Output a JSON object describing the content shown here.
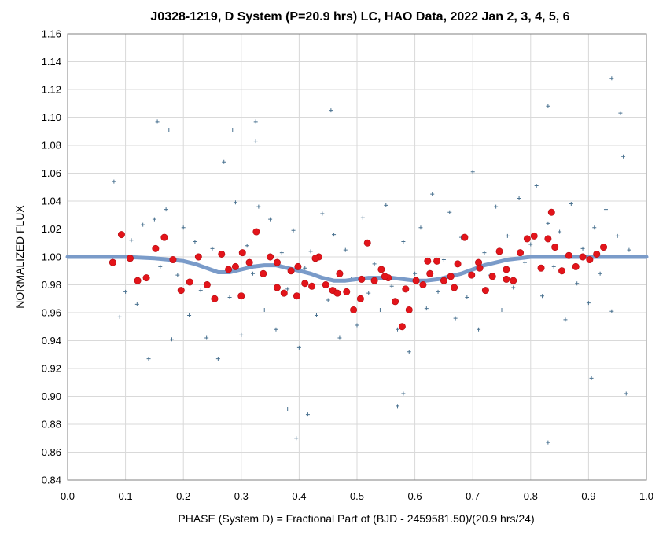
{
  "chart_data": {
    "type": "scatter",
    "title": "J0328-1219, D System (P=20.9 hrs) LC, HAO Data, 2022 Jan 2, 3, 4, 5, 6",
    "xlabel": "PHASE (System D) = Fractional Part of (BJD - 2459581.50)/(20.9 hrs/24)",
    "ylabel": "NORMALIZED FLUX",
    "xlim": [
      0.0,
      1.0
    ],
    "ylim": [
      0.84,
      1.16
    ],
    "xticks": [
      "0.0",
      "0.1",
      "0.2",
      "0.3",
      "0.4",
      "0.5",
      "0.6",
      "0.7",
      "0.8",
      "0.9",
      "1.0"
    ],
    "yticks": [
      "0.84",
      "0.86",
      "0.88",
      "0.90",
      "0.92",
      "0.94",
      "0.96",
      "0.98",
      "1.00",
      "1.02",
      "1.04",
      "1.06",
      "1.08",
      "1.10",
      "1.12",
      "1.14",
      "1.16"
    ],
    "grid": true,
    "legend": "none",
    "colors": {
      "raw_points": "#4a7290",
      "binned_points": "#e3141a",
      "model_line": "#7a9bc9",
      "grid": "#d9d9d9",
      "axis": "#808080"
    },
    "series": [
      {
        "kind": "raw",
        "x": [
          0.08,
          0.09,
          0.1,
          0.11,
          0.12,
          0.13,
          0.14,
          0.15,
          0.16,
          0.17,
          0.18,
          0.19,
          0.2,
          0.21,
          0.22,
          0.23,
          0.24,
          0.25,
          0.26,
          0.27,
          0.28,
          0.29,
          0.3,
          0.31,
          0.32,
          0.33,
          0.34,
          0.35,
          0.36,
          0.37,
          0.38,
          0.39,
          0.4,
          0.41,
          0.42,
          0.43,
          0.44,
          0.45,
          0.46,
          0.47,
          0.48,
          0.49,
          0.5,
          0.51,
          0.52,
          0.53,
          0.54,
          0.55,
          0.56,
          0.57,
          0.58,
          0.59,
          0.6,
          0.61,
          0.62,
          0.63,
          0.64,
          0.65,
          0.66,
          0.67,
          0.68,
          0.69,
          0.7,
          0.71,
          0.72,
          0.73,
          0.74,
          0.75,
          0.76,
          0.77,
          0.78,
          0.79,
          0.8,
          0.81,
          0.82,
          0.83,
          0.84,
          0.85,
          0.86,
          0.87,
          0.88,
          0.89,
          0.9,
          0.91,
          0.92,
          0.93,
          0.94,
          0.95,
          0.96,
          0.97,
          0.155,
          0.175,
          0.285,
          0.325,
          0.325,
          0.38,
          0.395,
          0.415,
          0.455,
          0.57,
          0.58,
          0.94,
          0.955,
          0.965,
          0.83,
          0.83,
          0.905
        ],
        "y": [
          1.054,
          0.957,
          0.975,
          1.012,
          0.966,
          1.023,
          0.927,
          1.027,
          0.993,
          1.034,
          0.941,
          0.987,
          1.021,
          0.958,
          1.011,
          0.976,
          0.942,
          1.006,
          0.927,
          1.068,
          0.971,
          1.039,
          0.944,
          1.008,
          0.988,
          1.036,
          0.962,
          1.027,
          0.948,
          1.003,
          0.977,
          1.019,
          0.935,
          0.992,
          1.004,
          0.958,
          1.031,
          0.969,
          1.016,
          0.942,
          1.005,
          0.984,
          0.951,
          1.028,
          0.974,
          0.995,
          0.962,
          1.037,
          0.979,
          0.948,
          1.011,
          0.932,
          0.988,
          1.021,
          0.963,
          1.045,
          0.975,
          0.998,
          1.032,
          0.956,
          1.014,
          0.971,
          1.061,
          0.948,
          1.003,
          0.987,
          1.036,
          0.962,
          1.015,
          0.978,
          1.042,
          0.996,
          1.009,
          1.051,
          0.972,
          1.024,
          0.993,
          1.018,
          0.955,
          1.038,
          0.981,
          1.006,
          0.967,
          1.021,
          0.988,
          1.034,
          0.961,
          1.015,
          1.072,
          1.005,
          1.097,
          1.091,
          1.091,
          1.097,
          1.083,
          0.891,
          0.87,
          0.887,
          1.105,
          0.893,
          0.902,
          1.128,
          1.103,
          0.902,
          1.108,
          0.867,
          0.913
        ]
      },
      {
        "kind": "binned",
        "x": [
          0.078,
          0.093,
          0.108,
          0.121,
          0.136,
          0.152,
          0.167,
          0.182,
          0.196,
          0.211,
          0.226,
          0.241,
          0.254,
          0.266,
          0.278,
          0.29,
          0.302,
          0.314,
          0.326,
          0.338,
          0.35,
          0.362,
          0.374,
          0.386,
          0.398,
          0.41,
          0.422,
          0.434,
          0.446,
          0.458,
          0.47,
          0.482,
          0.494,
          0.506,
          0.518,
          0.53,
          0.542,
          0.554,
          0.566,
          0.578,
          0.59,
          0.602,
          0.614,
          0.626,
          0.638,
          0.65,
          0.662,
          0.674,
          0.686,
          0.698,
          0.71,
          0.722,
          0.734,
          0.746,
          0.758,
          0.77,
          0.782,
          0.794,
          0.806,
          0.818,
          0.83,
          0.842,
          0.854,
          0.866,
          0.878,
          0.89,
          0.902,
          0.914,
          0.926,
          0.3,
          0.362,
          0.396,
          0.428,
          0.466,
          0.508,
          0.548,
          0.584,
          0.622,
          0.668,
          0.712,
          0.758,
          0.836
        ],
        "y": [
          0.996,
          1.016,
          0.999,
          0.983,
          0.985,
          1.006,
          1.014,
          0.998,
          0.976,
          0.982,
          1.0,
          0.98,
          0.97,
          1.002,
          0.991,
          0.993,
          1.003,
          0.996,
          1.018,
          0.988,
          1.0,
          0.978,
          0.974,
          0.99,
          0.993,
          0.981,
          0.979,
          1.0,
          0.98,
          0.976,
          0.988,
          0.975,
          0.962,
          0.97,
          1.01,
          0.983,
          0.991,
          0.985,
          0.968,
          0.95,
          0.962,
          0.983,
          0.98,
          0.988,
          0.997,
          0.983,
          0.986,
          0.995,
          1.014,
          0.987,
          0.996,
          0.976,
          0.986,
          1.004,
          0.991,
          0.983,
          1.003,
          1.013,
          1.015,
          0.992,
          1.013,
          1.007,
          0.99,
          1.001,
          0.993,
          1.0,
          0.998,
          1.002,
          1.007,
          0.972,
          0.996,
          0.972,
          0.999,
          0.974,
          0.984,
          0.986,
          0.977,
          0.997,
          0.978,
          0.992,
          0.984,
          1.032
        ]
      },
      {
        "kind": "model",
        "x": [
          0.0,
          0.05,
          0.1,
          0.15,
          0.2,
          0.22,
          0.24,
          0.26,
          0.28,
          0.3,
          0.32,
          0.34,
          0.36,
          0.38,
          0.4,
          0.42,
          0.44,
          0.46,
          0.48,
          0.5,
          0.52,
          0.54,
          0.56,
          0.58,
          0.6,
          0.62,
          0.64,
          0.66,
          0.68,
          0.7,
          0.72,
          0.74,
          0.76,
          0.78,
          0.8,
          0.85,
          0.9,
          0.95,
          1.0
        ],
        "y": [
          1.0,
          1.0,
          1.0,
          0.999,
          0.997,
          0.995,
          0.992,
          0.989,
          0.989,
          0.991,
          0.993,
          0.994,
          0.994,
          0.992,
          0.99,
          0.988,
          0.985,
          0.983,
          0.983,
          0.984,
          0.985,
          0.985,
          0.985,
          0.984,
          0.983,
          0.983,
          0.984,
          0.986,
          0.988,
          0.991,
          0.994,
          0.996,
          0.998,
          0.999,
          1.0,
          1.0,
          1.0,
          1.0,
          1.0
        ]
      }
    ]
  }
}
